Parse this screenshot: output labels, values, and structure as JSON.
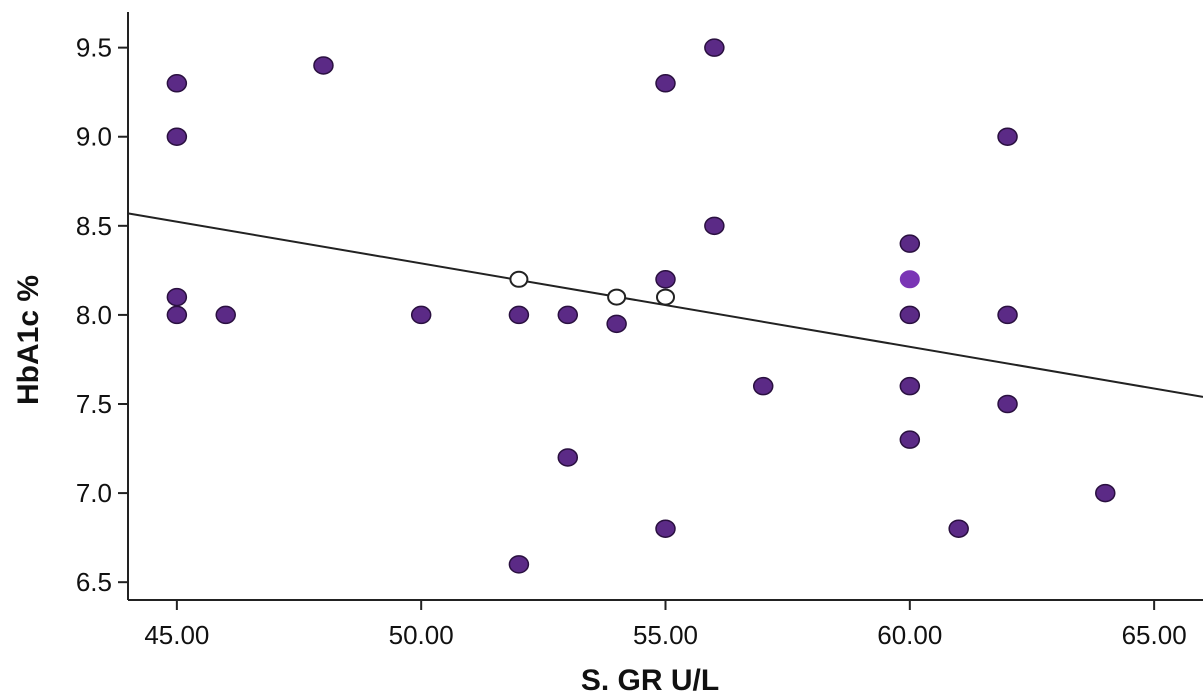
{
  "chart_data": {
    "type": "scatter",
    "xlabel": "S. GR U/L",
    "ylabel": "HbA1c %",
    "xlim": [
      44.0,
      66.0
    ],
    "ylim": [
      6.4,
      9.7
    ],
    "x_ticks": [
      "45.00",
      "50.00",
      "55.00",
      "60.00",
      "65.00"
    ],
    "x_tick_values": [
      45,
      50,
      55,
      60,
      65
    ],
    "y_ticks": [
      "6.5",
      "7.0",
      "7.5",
      "8.0",
      "8.5",
      "9.0",
      "9.5"
    ],
    "y_tick_values": [
      6.5,
      7.0,
      7.5,
      8.0,
      8.5,
      9.0,
      9.5
    ],
    "grid": false,
    "colors": {
      "point": "#5b2a86",
      "highlight": "#7a35b5",
      "hollow": "#ffffff",
      "line": "#222222"
    },
    "points": [
      {
        "x": 45,
        "y": 9.3
      },
      {
        "x": 45,
        "y": 9.0
      },
      {
        "x": 45,
        "y": 8.1
      },
      {
        "x": 45,
        "y": 8.0
      },
      {
        "x": 46,
        "y": 8.0
      },
      {
        "x": 48,
        "y": 9.4
      },
      {
        "x": 50,
        "y": 8.0
      },
      {
        "x": 52,
        "y": 8.0
      },
      {
        "x": 52,
        "y": 6.6
      },
      {
        "x": 53,
        "y": 8.0
      },
      {
        "x": 53,
        "y": 7.2
      },
      {
        "x": 54,
        "y": 7.95
      },
      {
        "x": 55,
        "y": 9.3
      },
      {
        "x": 55,
        "y": 8.2
      },
      {
        "x": 55,
        "y": 6.8
      },
      {
        "x": 56,
        "y": 9.5
      },
      {
        "x": 56,
        "y": 8.5
      },
      {
        "x": 57,
        "y": 7.6
      },
      {
        "x": 60,
        "y": 8.4
      },
      {
        "x": 60,
        "y": 8.0
      },
      {
        "x": 60,
        "y": 7.6
      },
      {
        "x": 60,
        "y": 7.3
      },
      {
        "x": 61,
        "y": 6.8
      },
      {
        "x": 62,
        "y": 9.0
      },
      {
        "x": 62,
        "y": 8.0
      },
      {
        "x": 62,
        "y": 7.5
      },
      {
        "x": 64,
        "y": 7.0
      }
    ],
    "highlight_points": [
      {
        "x": 60,
        "y": 8.2
      }
    ],
    "hollow_points": [
      {
        "x": 52,
        "y": 8.2
      },
      {
        "x": 54,
        "y": 8.1
      },
      {
        "x": 55,
        "y": 8.1
      }
    ],
    "fit_line": {
      "x": [
        44.0,
        66.0
      ],
      "y": [
        8.57,
        7.54
      ]
    }
  }
}
